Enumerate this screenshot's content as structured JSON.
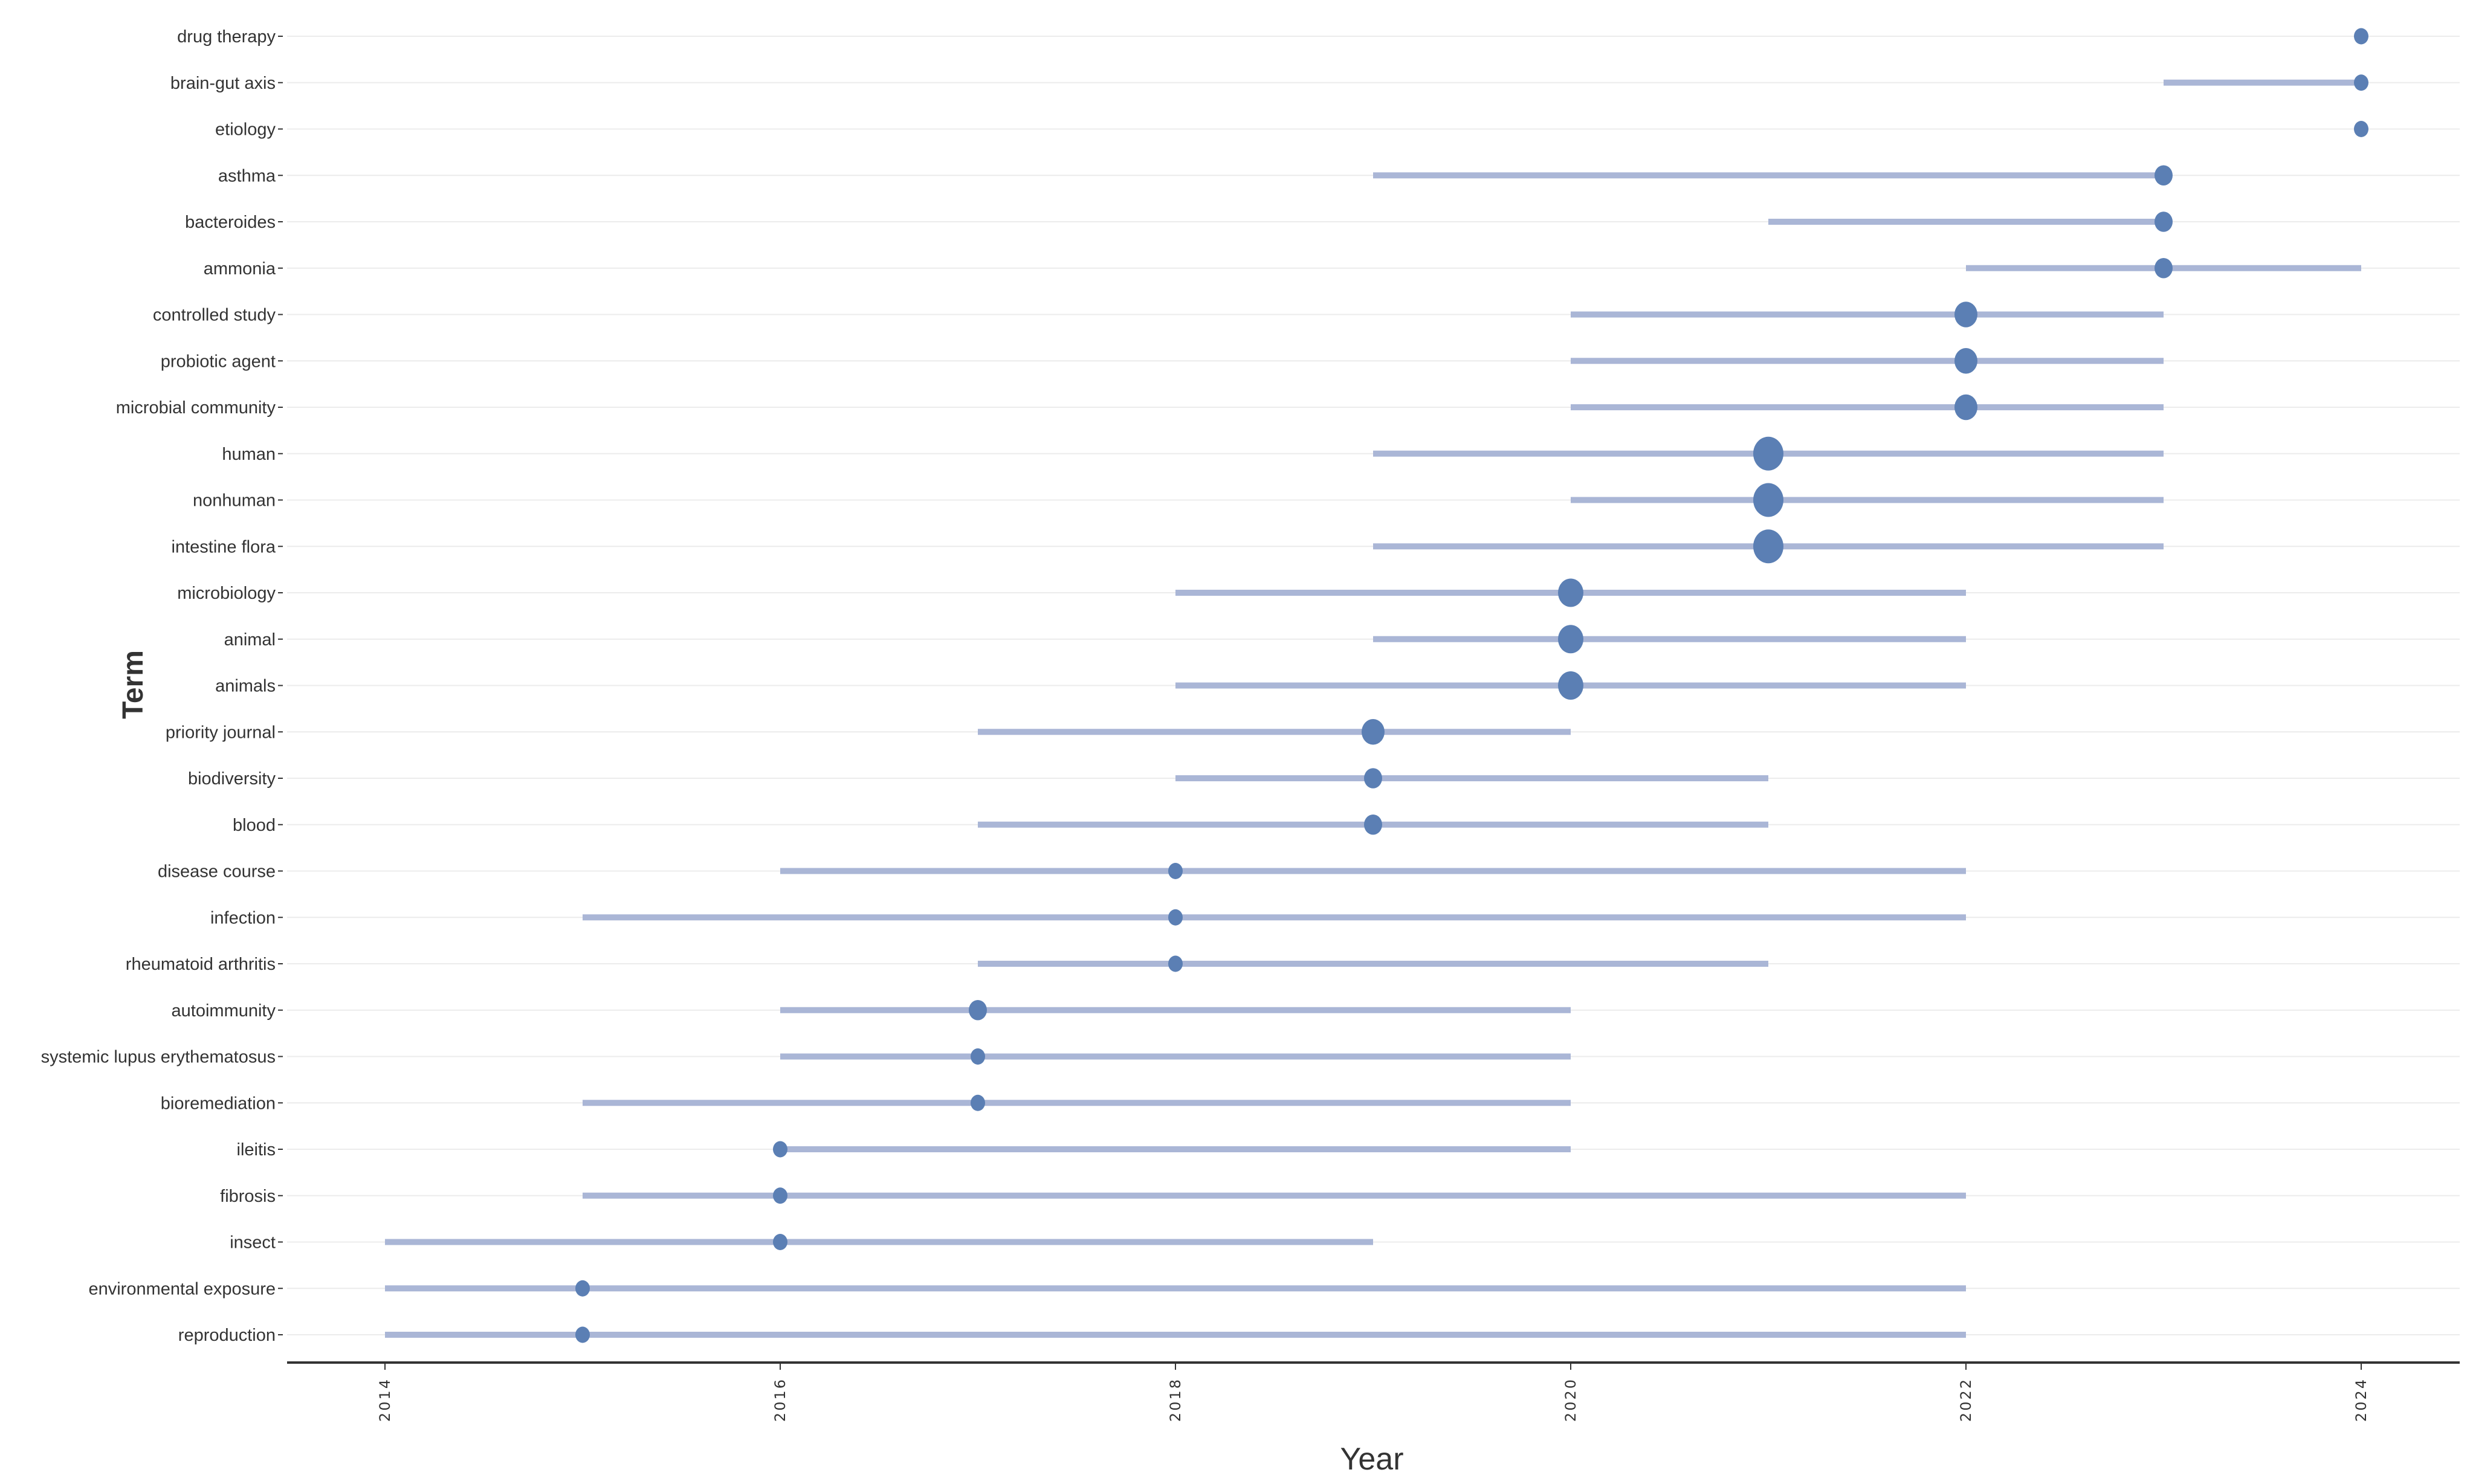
{
  "chart_data": {
    "type": "scatter",
    "xlabel": "Year",
    "ylabel": "Term",
    "xlim": [
      2013.5,
      2024.5
    ],
    "x_ticks": [
      "2014",
      "2016",
      "2018",
      "2020",
      "2022",
      "2024"
    ],
    "grid": "horizontal",
    "legend": "none",
    "colors": {
      "point": "#5b7fb4",
      "range_line": "#aab6d6",
      "grid": "#ececec",
      "axis": "#333333",
      "text": "#333333"
    },
    "terms": [
      {
        "term": "drug therapy",
        "start": 2024,
        "end": 2024,
        "median": 2024,
        "size": 1
      },
      {
        "term": "brain-gut axis",
        "start": 2023,
        "end": 2024,
        "median": 2024,
        "size": 1
      },
      {
        "term": "etiology",
        "start": 2024,
        "end": 2024,
        "median": 2024,
        "size": 1
      },
      {
        "term": "asthma",
        "start": 2019,
        "end": 2023,
        "median": 2023,
        "size": 2
      },
      {
        "term": "bacteroides",
        "start": 2021,
        "end": 2023,
        "median": 2023,
        "size": 2
      },
      {
        "term": "ammonia",
        "start": 2022,
        "end": 2024,
        "median": 2023,
        "size": 2
      },
      {
        "term": "controlled study",
        "start": 2020,
        "end": 2023,
        "median": 2022,
        "size": 3
      },
      {
        "term": "probiotic agent",
        "start": 2020,
        "end": 2023,
        "median": 2022,
        "size": 3
      },
      {
        "term": "microbial community",
        "start": 2020,
        "end": 2023,
        "median": 2022,
        "size": 3
      },
      {
        "term": "human",
        "start": 2019,
        "end": 2023,
        "median": 2021,
        "size": 5
      },
      {
        "term": "nonhuman",
        "start": 2020,
        "end": 2023,
        "median": 2021,
        "size": 5
      },
      {
        "term": "intestine flora",
        "start": 2019,
        "end": 2023,
        "median": 2021,
        "size": 5
      },
      {
        "term": "microbiology",
        "start": 2018,
        "end": 2022,
        "median": 2020,
        "size": 4
      },
      {
        "term": "animal",
        "start": 2019,
        "end": 2022,
        "median": 2020,
        "size": 4
      },
      {
        "term": "animals",
        "start": 2018,
        "end": 2022,
        "median": 2020,
        "size": 4
      },
      {
        "term": "priority journal",
        "start": 2017,
        "end": 2020,
        "median": 2019,
        "size": 3
      },
      {
        "term": "biodiversity",
        "start": 2018,
        "end": 2021,
        "median": 2019,
        "size": 2
      },
      {
        "term": "blood",
        "start": 2017,
        "end": 2021,
        "median": 2019,
        "size": 2
      },
      {
        "term": "disease course",
        "start": 2016,
        "end": 2022,
        "median": 2018,
        "size": 1
      },
      {
        "term": "infection",
        "start": 2015,
        "end": 2022,
        "median": 2018,
        "size": 1
      },
      {
        "term": "rheumatoid arthritis",
        "start": 2017,
        "end": 2021,
        "median": 2018,
        "size": 1
      },
      {
        "term": "autoimmunity",
        "start": 2016,
        "end": 2020,
        "median": 2017,
        "size": 2
      },
      {
        "term": "systemic lupus erythematosus",
        "start": 2016,
        "end": 2020,
        "median": 2017,
        "size": 1
      },
      {
        "term": "bioremediation",
        "start": 2015,
        "end": 2020,
        "median": 2017,
        "size": 1
      },
      {
        "term": "ileitis",
        "start": 2016,
        "end": 2020,
        "median": 2016,
        "size": 1
      },
      {
        "term": "fibrosis",
        "start": 2015,
        "end": 2022,
        "median": 2016,
        "size": 1
      },
      {
        "term": "insect",
        "start": 2014,
        "end": 2019,
        "median": 2016,
        "size": 1
      },
      {
        "term": "environmental exposure",
        "start": 2014,
        "end": 2022,
        "median": 2015,
        "size": 1
      },
      {
        "term": "reproduction",
        "start": 2014,
        "end": 2022,
        "median": 2015,
        "size": 1
      }
    ]
  }
}
